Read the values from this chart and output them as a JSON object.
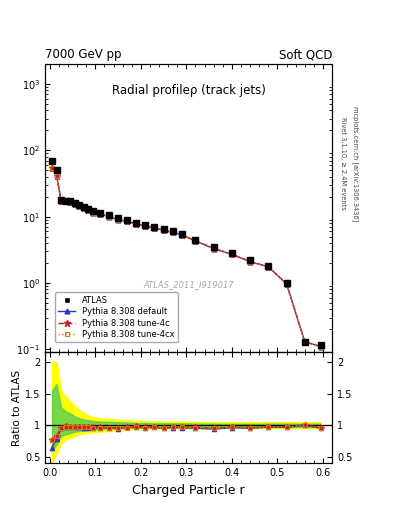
{
  "title": "Radial profileρ (track jets)",
  "top_left_label": "7000 GeV pp",
  "top_right_label": "Soft QCD",
  "right_label_top": "Rivet 3.1.10, ≥ 2.4M events",
  "right_label_bot": "mcplots.cern.ch [arXiv:1306.3436]",
  "watermark": "ATLAS_2011_I919017",
  "xlabel": "Charged Particle r",
  "ylabel_ratio": "Ratio to ATLAS",
  "x_data": [
    0.005,
    0.015,
    0.025,
    0.035,
    0.045,
    0.055,
    0.065,
    0.075,
    0.085,
    0.095,
    0.11,
    0.13,
    0.15,
    0.17,
    0.19,
    0.21,
    0.23,
    0.25,
    0.27,
    0.29,
    0.32,
    0.36,
    0.4,
    0.44,
    0.48,
    0.52,
    0.56,
    0.595
  ],
  "atlas_y": [
    70.0,
    50.0,
    18.0,
    17.5,
    17.0,
    16.0,
    15.0,
    14.0,
    13.0,
    12.0,
    11.5,
    10.5,
    9.5,
    8.8,
    8.0,
    7.5,
    7.0,
    6.5,
    6.0,
    5.5,
    4.5,
    3.5,
    2.8,
    2.2,
    1.8,
    1.0,
    0.13,
    0.115
  ],
  "pythia_default_y": [
    55.0,
    42.0,
    17.2,
    17.0,
    16.5,
    15.5,
    14.5,
    13.5,
    12.5,
    11.5,
    11.0,
    10.0,
    9.0,
    8.5,
    7.8,
    7.2,
    6.8,
    6.2,
    5.8,
    5.3,
    4.3,
    3.3,
    2.7,
    2.1,
    1.75,
    0.97,
    0.13,
    0.11
  ],
  "pythia_4c_y": [
    54.0,
    41.5,
    17.3,
    17.2,
    16.6,
    15.6,
    14.6,
    13.6,
    12.6,
    11.6,
    11.1,
    10.1,
    9.1,
    8.5,
    7.85,
    7.25,
    6.85,
    6.25,
    5.85,
    5.35,
    4.35,
    3.35,
    2.72,
    2.12,
    1.76,
    0.98,
    0.131,
    0.111
  ],
  "pythia_4cx_y": [
    54.0,
    41.5,
    17.2,
    17.1,
    16.55,
    15.55,
    14.55,
    13.55,
    12.55,
    11.55,
    11.05,
    10.05,
    9.05,
    8.48,
    7.82,
    7.22,
    6.82,
    6.22,
    5.82,
    5.32,
    4.32,
    3.32,
    2.71,
    2.11,
    1.75,
    0.975,
    0.13,
    0.11
  ],
  "ratio_default": [
    0.65,
    0.78,
    0.955,
    0.972,
    0.97,
    0.97,
    0.968,
    0.965,
    0.963,
    0.96,
    0.958,
    0.953,
    0.948,
    0.966,
    0.972,
    0.958,
    0.968,
    0.953,
    0.965,
    0.963,
    0.954,
    0.941,
    0.962,
    0.953,
    0.97,
    0.968,
    0.998,
    0.955
  ],
  "ratio_4c": [
    0.77,
    0.83,
    0.96,
    0.983,
    0.977,
    0.976,
    0.974,
    0.972,
    0.97,
    0.968,
    0.966,
    0.963,
    0.959,
    0.967,
    0.982,
    0.968,
    0.98,
    0.963,
    0.976,
    0.974,
    0.968,
    0.958,
    0.972,
    0.965,
    0.979,
    0.981,
    1.009,
    0.965
  ],
  "ratio_4cx": [
    0.77,
    0.83,
    0.957,
    0.978,
    0.972,
    0.973,
    0.971,
    0.969,
    0.966,
    0.964,
    0.961,
    0.958,
    0.954,
    0.965,
    0.979,
    0.964,
    0.975,
    0.959,
    0.971,
    0.968,
    0.961,
    0.95,
    0.969,
    0.96,
    0.973,
    0.976,
    1.001,
    0.959
  ],
  "band_yellow_low": [
    0.42,
    0.55,
    0.72,
    0.78,
    0.8,
    0.83,
    0.86,
    0.87,
    0.88,
    0.89,
    0.9,
    0.91,
    0.92,
    0.93,
    0.94,
    0.94,
    0.95,
    0.95,
    0.95,
    0.95,
    0.95,
    0.955,
    0.96,
    0.96,
    0.955,
    0.955,
    0.955,
    0.955
  ],
  "band_yellow_high": [
    2.0,
    2.0,
    1.55,
    1.45,
    1.38,
    1.3,
    1.24,
    1.19,
    1.16,
    1.13,
    1.11,
    1.1,
    1.09,
    1.08,
    1.07,
    1.07,
    1.06,
    1.06,
    1.06,
    1.06,
    1.055,
    1.052,
    1.05,
    1.05,
    1.05,
    1.05,
    1.05,
    1.05
  ],
  "band_green_low": [
    0.6,
    0.7,
    0.83,
    0.86,
    0.88,
    0.9,
    0.91,
    0.92,
    0.93,
    0.94,
    0.945,
    0.95,
    0.955,
    0.96,
    0.965,
    0.965,
    0.97,
    0.97,
    0.97,
    0.97,
    0.972,
    0.974,
    0.976,
    0.976,
    0.974,
    0.974,
    0.974,
    0.974
  ],
  "band_green_high": [
    1.55,
    1.65,
    1.28,
    1.22,
    1.19,
    1.14,
    1.11,
    1.09,
    1.08,
    1.07,
    1.06,
    1.055,
    1.05,
    1.045,
    1.038,
    1.038,
    1.032,
    1.032,
    1.032,
    1.032,
    1.028,
    1.026,
    1.024,
    1.024,
    1.026,
    1.026,
    1.026,
    1.026
  ],
  "color_default": "#3333cc",
  "color_4c": "#cc2222",
  "color_4cx": "#dd7700",
  "color_atlas": "#000000",
  "xlim": [
    -0.01,
    0.62
  ],
  "ylim_main": [
    0.09,
    2000
  ],
  "ylim_ratio": [
    0.4,
    2.15
  ],
  "ratio_yticks": [
    0.5,
    1.0,
    1.5,
    2.0
  ],
  "ratio_yticklabels": [
    "0.5",
    "1",
    "1.5",
    "2"
  ]
}
